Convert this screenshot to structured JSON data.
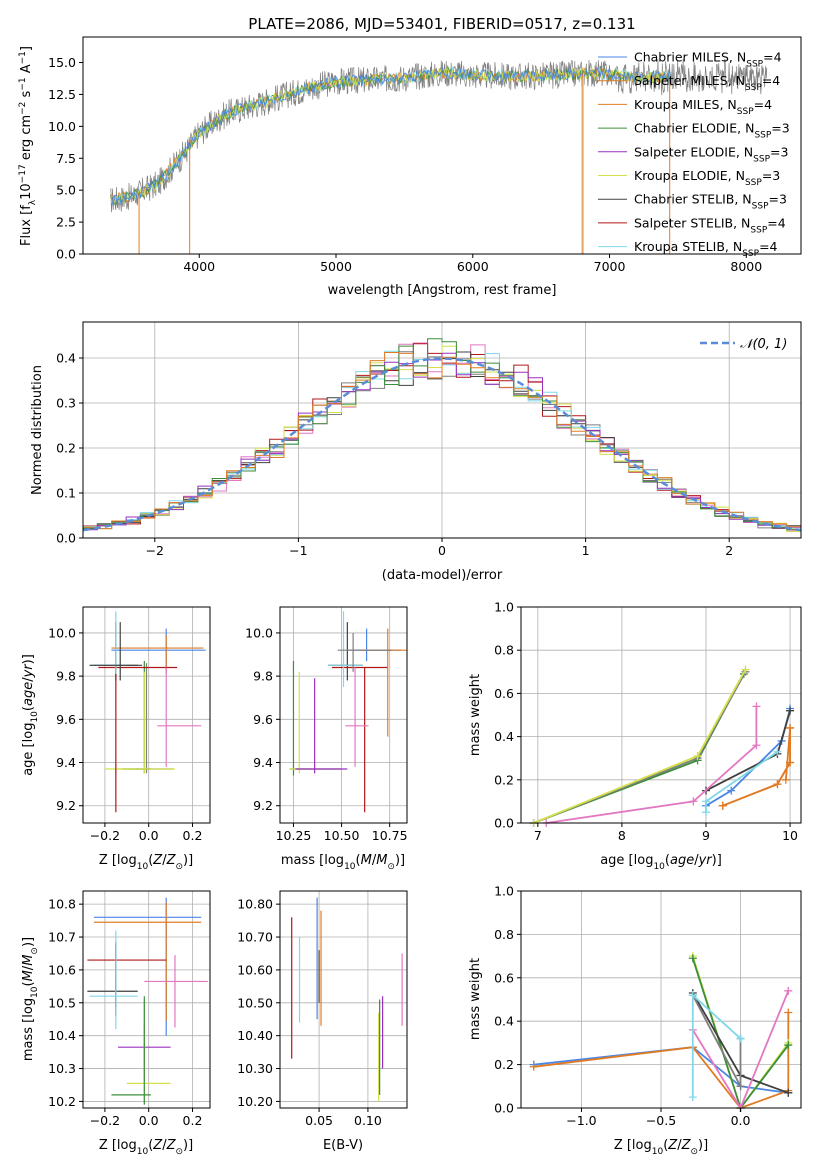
{
  "figure_title": "PLATE=2086, MJD=53401, FIBERID=0517, z=0.131",
  "series_colors": [
    "#4a86e8",
    "#e07b24",
    "#e07b24",
    "#3a8f3a",
    "#9b30c0",
    "#d4e04a",
    "#404040",
    "#b01818",
    "#80d8e8"
  ],
  "legend_colors": {
    "Chabrier MILES, N_SSP=4": "#4a86e8",
    "Salpeter MILES, N_SSP=4": "#e07b24",
    "Kroupa MILES, N_SSP=4": "#e07b24",
    "Chabrier ELODIE, N_SSP=3": "#3a8f3a",
    "Salpeter ELODIE, N_SSP=3": "#9b30c0",
    "Kroupa ELODIE, N_SSP=3": "#d4e04a",
    "Chabrier STELIB, N_SSP=3": "#404040",
    "Salpeter STELIB, N_SSP=4": "#b01818",
    "Kroupa STELIB, N_SSP=4": "#80d8e8"
  },
  "chart_data": [
    {
      "type": "line",
      "title": "PLATE=2086, MJD=53401, FIBERID=0517, z=0.131",
      "xlabel": "wavelength [Angstrom, rest frame]",
      "ylabel": "Flux [f_λ 10^-17 erg cm^-2 s^-1 A^-1]",
      "xlim": [
        3150,
        8400
      ],
      "ylim": [
        0,
        17
      ],
      "xticks": [
        4000,
        5000,
        6000,
        7000,
        8000
      ],
      "yticks": [
        0.0,
        2.5,
        5.0,
        7.5,
        10.0,
        12.5,
        15.0
      ],
      "grid": false,
      "legend_position": "right",
      "spectrum_envelope": {
        "x": [
          3350,
          3500,
          3700,
          3900,
          4000,
          4200,
          4500,
          4800,
          5000,
          5200,
          5500,
          5800,
          6000,
          6300,
          6600,
          6900,
          7200,
          7500
        ],
        "y": [
          4.2,
          4.5,
          5.5,
          8.0,
          9.5,
          11.0,
          12.0,
          13.0,
          13.5,
          13.6,
          13.8,
          14.2,
          14.0,
          13.9,
          14.0,
          14.2,
          13.8,
          13.9
        ]
      },
      "gray_observed_extent": [
        3350,
        8150
      ],
      "series": [
        {
          "name": "Chabrier MILES, N_SSP=4"
        },
        {
          "name": "Salpeter MILES, N_SSP=4"
        },
        {
          "name": "Kroupa MILES, N_SSP=4"
        },
        {
          "name": "Chabrier ELODIE, N_SSP=3"
        },
        {
          "name": "Salpeter ELODIE, N_SSP=3"
        },
        {
          "name": "Kroupa ELODIE, N_SSP=3"
        },
        {
          "name": "Chabrier STELIB, N_SSP=3"
        },
        {
          "name": "Salpeter STELIB, N_SSP=4"
        },
        {
          "name": "Kroupa STELIB, N_SSP=4"
        }
      ]
    },
    {
      "type": "histogram",
      "xlabel": "(data-model)/error",
      "ylabel": "Normed distribution",
      "xlim": [
        -2.5,
        2.5
      ],
      "ylim": [
        0,
        0.48
      ],
      "xticks": [
        -2,
        -1,
        0,
        1,
        2
      ],
      "xtick_labels": [
        "−2",
        "−1",
        "0",
        "1",
        "2"
      ],
      "yticks": [
        0.0,
        0.1,
        0.2,
        0.3,
        0.4
      ],
      "grid": true,
      "legend_position": "top-right",
      "legend": "N(0,1)",
      "bin_width": 0.1,
      "bins_start": -2.5,
      "reference_curve": "gaussian mean 0 sigma 1"
    },
    {
      "type": "scatter-errorbar",
      "xlabel": "Z [log10(Z/Z☉)]",
      "ylabel": "age [log10(age/yr)]",
      "xlim": [
        -0.3,
        0.28
      ],
      "ylim": [
        9.12,
        10.12
      ],
      "xticks": [
        -0.2,
        0.0,
        0.2
      ],
      "xtick_labels": [
        "−0.2",
        "0.0",
        "0.2"
      ],
      "yticks": [
        9.2,
        9.4,
        9.6,
        9.8,
        10.0
      ],
      "grid": true,
      "points": [
        {
          "x": -0.15,
          "y": 9.37,
          "xerr": [
            0.05,
            0.1
          ],
          "yerr": [
            0.03,
            0.05
          ]
        },
        {
          "x": 0.08,
          "y": 9.92,
          "xerr": [
            0.25,
            0.18
          ],
          "yerr": [
            0.08,
            0.1
          ]
        },
        {
          "x": 0.08,
          "y": 9.93,
          "xerr": [
            0.25,
            0.17
          ],
          "yerr": [
            0.12,
            0.06
          ]
        },
        {
          "x": -0.02,
          "y": 9.37,
          "xerr": [
            0.1,
            0.03
          ],
          "yerr": [
            0.02,
            0.5
          ]
        },
        {
          "x": -0.01,
          "y": 9.37,
          "xerr": [
            0.05,
            0.12
          ],
          "yerr": [
            0.02,
            0.49
          ]
        },
        {
          "x": -0.02,
          "y": 9.37,
          "xerr": [
            0.12,
            0.14
          ],
          "yerr": [
            0.02,
            0.45
          ]
        },
        {
          "x": -0.15,
          "y": 9.85,
          "xerr": [
            0.1,
            0.1
          ],
          "yerr": [
            0.07,
            0.2
          ]
        },
        {
          "x": -0.15,
          "y": 9.84,
          "xerr": [
            0.08,
            0.28
          ],
          "yerr": [
            0.67,
            0.0
          ]
        },
        {
          "x": 0.08,
          "y": 9.57,
          "xerr": [
            0.04,
            0.16
          ],
          "yerr": [
            0.19,
            0.27
          ]
        }
      ]
    },
    {
      "type": "scatter-errorbar",
      "xlabel": "mass [log10(M/M☉)]",
      "xlim": [
        10.18,
        10.84
      ],
      "ylim": [
        9.12,
        10.12
      ],
      "xticks": [
        10.25,
        10.5,
        10.75
      ],
      "xtick_labels": [
        "10.25",
        "10.50",
        "10.75"
      ],
      "yticks": [
        9.2,
        9.4,
        9.6,
        9.8,
        10.0
      ],
      "grid": true
    },
    {
      "type": "line",
      "xlabel": "age [log10(age/yr)]",
      "ylabel": "mass weight",
      "xlim": [
        6.8,
        10.13
      ],
      "ylim": [
        0,
        1.0
      ],
      "xticks": [
        7,
        8,
        9,
        10
      ],
      "yticks": [
        0.0,
        0.2,
        0.4,
        0.6,
        0.8,
        1.0
      ],
      "grid": true,
      "series": [
        {
          "x": [
            9.0,
            9.3,
            9.9,
            10.0
          ],
          "y": [
            0.08,
            0.15,
            0.38,
            0.53
          ]
        },
        {
          "x": [
            9.2,
            9.85,
            10.0,
            10.0,
            9.95
          ],
          "y": [
            0.08,
            0.18,
            0.28,
            0.44,
            0.2
          ]
        },
        {
          "x": [
            9.2,
            9.85,
            10.0,
            10.0
          ],
          "y": [
            0.08,
            0.18,
            0.28,
            0.44
          ]
        },
        {
          "x": [
            6.95,
            8.9,
            9.45
          ],
          "y": [
            0.0,
            0.29,
            0.69
          ]
        },
        {
          "x": [
            6.95,
            8.9,
            9.47
          ],
          "y": [
            0.0,
            0.3,
            0.7
          ]
        },
        {
          "x": [
            6.95,
            8.9,
            9.47
          ],
          "y": [
            0.0,
            0.31,
            0.71
          ]
        },
        {
          "x": [
            9.0,
            9.85,
            10.0
          ],
          "y": [
            0.15,
            0.32,
            0.52
          ]
        },
        {
          "x": [
            7.1,
            8.85,
            9.6,
            9.6
          ],
          "y": [
            0.0,
            0.1,
            0.36,
            0.54
          ]
        },
        {
          "x": [
            9.0,
            9.0,
            9.85
          ],
          "y": [
            0.05,
            0.1,
            0.33
          ]
        }
      ]
    },
    {
      "type": "scatter-errorbar",
      "xlabel": "Z [log10(Z/Z☉)]",
      "ylabel": "mass [log10(M/M☉)]",
      "xlim": [
        -0.3,
        0.28
      ],
      "ylim": [
        10.18,
        10.84
      ],
      "xticks": [
        -0.2,
        0.0,
        0.2
      ],
      "xtick_labels": [
        "−0.2",
        "0.0",
        "0.2"
      ],
      "yticks": [
        10.2,
        10.3,
        10.4,
        10.5,
        10.6,
        10.7,
        10.8
      ],
      "grid": true
    },
    {
      "type": "scatter-errorbar",
      "xlabel": "E(B-V)",
      "xlim": [
        0.01,
        0.14
      ],
      "ylim": [
        10.18,
        10.84
      ],
      "xticks": [
        0.05,
        0.1
      ],
      "xtick_labels": [
        "0.05",
        "0.10"
      ],
      "yticks": [
        10.2,
        10.3,
        10.4,
        10.5,
        10.6,
        10.7,
        10.8
      ],
      "grid": true
    },
    {
      "type": "line",
      "xlabel": "Z [log10(Z/Z☉)]",
      "ylabel": "mass weight",
      "xlim": [
        -1.38,
        0.38
      ],
      "ylim": [
        0,
        1.0
      ],
      "xticks": [
        -1.0,
        -0.5,
        0.0
      ],
      "xtick_labels": [
        "−1.0",
        "−0.5",
        "0.0"
      ],
      "yticks": [
        0.0,
        0.2,
        0.4,
        0.6,
        0.8,
        1.0
      ],
      "grid": true
    }
  ]
}
